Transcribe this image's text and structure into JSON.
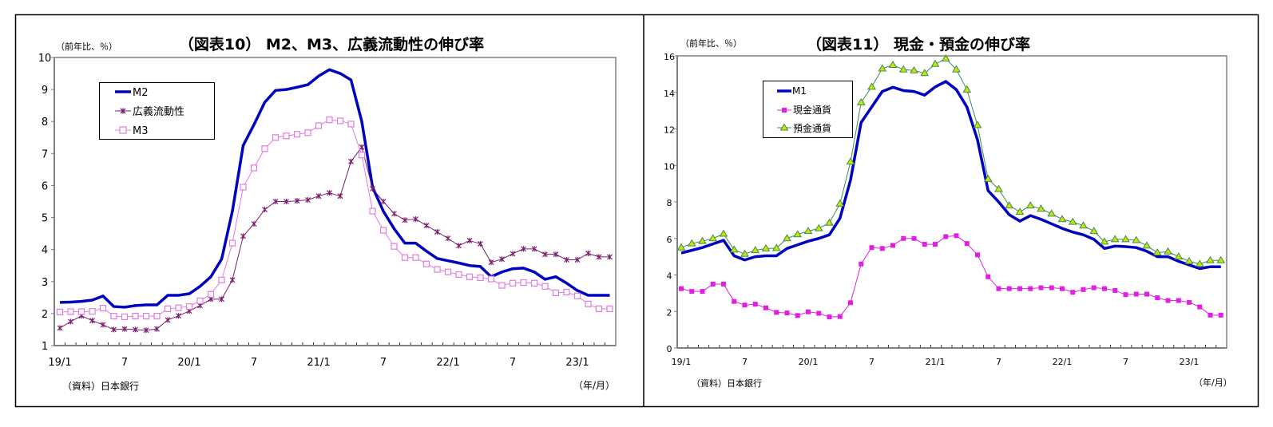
{
  "chart_data": [
    {
      "type": "line",
      "title": "（図表10） M2、M3、広義流動性の伸び率",
      "ylabel": "（前年比、％）",
      "xlabel": "（年/月）",
      "source": "（資料）日本銀行",
      "ylim": [
        1,
        10
      ],
      "yticks": [
        "1",
        "2",
        "3",
        "4",
        "5",
        "6",
        "7",
        "8",
        "9",
        "10"
      ],
      "xticks": [
        {
          "index": 0,
          "label": "19/1"
        },
        {
          "index": 6,
          "label": "7"
        },
        {
          "index": 12,
          "label": "20/1"
        },
        {
          "index": 18,
          "label": "7"
        },
        {
          "index": 24,
          "label": "21/1"
        },
        {
          "index": 30,
          "label": "7"
        },
        {
          "index": 36,
          "label": "22/1"
        },
        {
          "index": 42,
          "label": "7"
        },
        {
          "index": 48,
          "label": "23/1"
        }
      ],
      "x_period": "2019/1 - 2023/4 (monthly)",
      "legend": "top-left",
      "series": [
        {
          "name": "M2",
          "color": "#0000c0",
          "marker": "none",
          "values": [
            2.35,
            2.36,
            2.38,
            2.42,
            2.55,
            2.22,
            2.2,
            2.25,
            2.27,
            2.27,
            2.57,
            2.57,
            2.62,
            2.85,
            3.15,
            3.7,
            5.2,
            7.25,
            7.9,
            8.6,
            8.97,
            9.0,
            9.07,
            9.15,
            9.42,
            9.62,
            9.5,
            9.3,
            8.0,
            5.95,
            5.2,
            4.65,
            4.2,
            4.2,
            3.95,
            3.72,
            3.65,
            3.58,
            3.5,
            3.47,
            3.15,
            3.3,
            3.4,
            3.42,
            3.3,
            3.07,
            3.15,
            2.95,
            2.72,
            2.57,
            2.57,
            2.57
          ]
        },
        {
          "name": "広義流動性",
          "color": "#7b1f6e",
          "marker": "star",
          "values": [
            1.55,
            1.75,
            1.93,
            1.78,
            1.65,
            1.5,
            1.52,
            1.5,
            1.48,
            1.52,
            1.8,
            1.93,
            2.08,
            2.25,
            2.45,
            2.45,
            3.05,
            4.42,
            4.8,
            5.25,
            5.5,
            5.5,
            5.52,
            5.55,
            5.67,
            5.77,
            5.67,
            6.75,
            7.2,
            5.9,
            5.5,
            5.12,
            4.92,
            4.95,
            4.75,
            4.55,
            4.35,
            4.12,
            4.28,
            4.18,
            3.6,
            3.7,
            3.87,
            4.02,
            4.02,
            3.85,
            3.85,
            3.68,
            3.68,
            3.88,
            3.77,
            3.77
          ]
        },
        {
          "name": "M3",
          "color": "#e07be0",
          "marker": "square",
          "values": [
            2.05,
            2.06,
            2.06,
            2.07,
            2.17,
            1.92,
            1.9,
            1.92,
            1.92,
            1.92,
            2.15,
            2.18,
            2.22,
            2.4,
            2.6,
            3.05,
            4.2,
            5.95,
            6.55,
            7.15,
            7.5,
            7.55,
            7.6,
            7.65,
            7.87,
            8.05,
            8.02,
            7.92,
            6.95,
            5.2,
            4.6,
            4.1,
            3.75,
            3.75,
            3.55,
            3.38,
            3.3,
            3.22,
            3.15,
            3.12,
            3.08,
            2.88,
            2.95,
            2.97,
            2.95,
            2.85,
            2.65,
            2.67,
            2.55,
            2.3,
            2.15,
            2.15
          ]
        }
      ]
    },
    {
      "type": "line",
      "title": "（図表11） 現金・預金の伸び率",
      "ylabel": "（前年比、％）",
      "xlabel": "（年/月）",
      "source": "（資料）日本銀行",
      "ylim": [
        0,
        16
      ],
      "yticks": [
        "0",
        "2",
        "4",
        "6",
        "8",
        "10",
        "12",
        "14",
        "16"
      ],
      "xticks": [
        {
          "index": 0,
          "label": "19/1"
        },
        {
          "index": 6,
          "label": "7"
        },
        {
          "index": 12,
          "label": "20/1"
        },
        {
          "index": 18,
          "label": "7"
        },
        {
          "index": 24,
          "label": "21/1"
        },
        {
          "index": 30,
          "label": "7"
        },
        {
          "index": 36,
          "label": "22/1"
        },
        {
          "index": 42,
          "label": "7"
        },
        {
          "index": 48,
          "label": "23/1"
        }
      ],
      "x_period": "2019/1 - 2023/4 (monthly)",
      "legend": "top-left",
      "series": [
        {
          "name": "M1",
          "color": "#0000c0",
          "marker": "none",
          "values": [
            5.2,
            5.35,
            5.5,
            5.7,
            5.9,
            5.05,
            4.82,
            5.0,
            5.05,
            5.05,
            5.45,
            5.65,
            5.85,
            6.0,
            6.2,
            7.1,
            9.2,
            12.35,
            13.2,
            14.05,
            14.28,
            14.1,
            14.05,
            13.85,
            14.3,
            14.6,
            14.15,
            13.2,
            11.4,
            8.62,
            8.0,
            7.3,
            6.95,
            7.25,
            7.05,
            6.8,
            6.55,
            6.35,
            6.2,
            5.95,
            5.45,
            5.58,
            5.55,
            5.5,
            5.3,
            5.0,
            5.0,
            4.75,
            4.55,
            4.35,
            4.45,
            4.45
          ]
        },
        {
          "name": "現金通貨",
          "color": "#e020e0",
          "marker": "filled-square",
          "values": [
            3.25,
            3.1,
            3.1,
            3.5,
            3.5,
            2.55,
            2.35,
            2.4,
            2.2,
            1.95,
            1.92,
            1.78,
            1.98,
            1.9,
            1.7,
            1.72,
            2.48,
            4.6,
            5.5,
            5.45,
            5.62,
            6.0,
            6.0,
            5.68,
            5.68,
            6.1,
            6.15,
            5.72,
            5.1,
            3.9,
            3.25,
            3.25,
            3.25,
            3.25,
            3.3,
            3.3,
            3.25,
            3.05,
            3.2,
            3.3,
            3.25,
            3.15,
            2.92,
            2.95,
            2.95,
            2.75,
            2.6,
            2.6,
            2.5,
            2.25,
            1.8,
            1.8
          ]
        },
        {
          "name": "預金通貨",
          "color": "#3d8a5a",
          "marker": "triangle",
          "marker_fill": "#c8e600",
          "values": [
            5.5,
            5.72,
            5.85,
            6.0,
            6.25,
            5.38,
            5.15,
            5.35,
            5.45,
            5.47,
            6.0,
            6.22,
            6.4,
            6.55,
            6.85,
            7.9,
            10.2,
            13.45,
            14.3,
            15.3,
            15.5,
            15.25,
            15.2,
            15.05,
            15.55,
            15.85,
            15.25,
            14.15,
            12.2,
            9.25,
            8.7,
            7.8,
            7.45,
            7.8,
            7.62,
            7.35,
            7.05,
            6.9,
            6.7,
            6.4,
            5.82,
            5.95,
            5.95,
            5.9,
            5.6,
            5.22,
            5.28,
            5.0,
            4.75,
            4.6,
            4.8,
            4.8
          ]
        }
      ]
    }
  ]
}
